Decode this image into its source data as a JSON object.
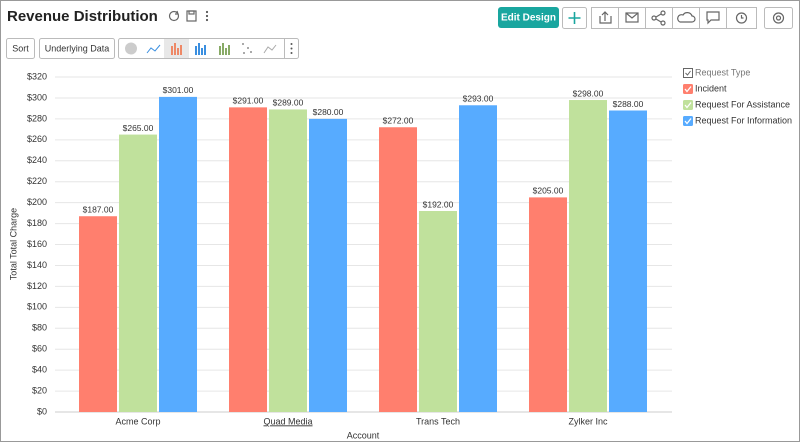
{
  "header": {
    "title": "Revenue Distribution",
    "edit_button": "Edit Design"
  },
  "toolbar": {
    "sort": "Sort",
    "underlying_data": "Underlying Data"
  },
  "chart_data": {
    "type": "bar",
    "x_label": "Account",
    "y_label": "Total Total Charge",
    "categories": [
      "Acme Corp",
      "Quad Media",
      "Trans Tech",
      "Zylker Inc"
    ],
    "legend_title": "Request Type",
    "legend": "right",
    "series": [
      {
        "name": "Incident",
        "color": "#ff7f6e",
        "values": [
          187,
          291,
          272,
          205
        ],
        "value_labels": [
          "$187.00",
          "$291.00",
          "$272.00",
          "$205.00"
        ]
      },
      {
        "name": "Request For Assistance",
        "color": "#c0e19c",
        "values": [
          265,
          289,
          192,
          298
        ],
        "value_labels": [
          "$265.00",
          "$289.00",
          "$192.00",
          "$298.00"
        ]
      },
      {
        "name": "Request For Information",
        "color": "#57abff",
        "values": [
          301,
          280,
          293,
          288
        ],
        "value_labels": [
          "$301.00",
          "$280.00",
          "$293.00",
          "$288.00"
        ]
      }
    ],
    "ylim": [
      0,
      320
    ],
    "yticks": [
      {
        "value": 0,
        "label": "$0"
      },
      {
        "value": 20,
        "label": "$20"
      },
      {
        "value": 40,
        "label": "$40"
      },
      {
        "value": 60,
        "label": "$60"
      },
      {
        "value": 80,
        "label": "$80"
      },
      {
        "value": 100,
        "label": "$100"
      },
      {
        "value": 120,
        "label": "$120"
      },
      {
        "value": 140,
        "label": "$140"
      },
      {
        "value": 160,
        "label": "$160"
      },
      {
        "value": 180,
        "label": "$180"
      },
      {
        "value": 200,
        "label": "$200"
      },
      {
        "value": 220,
        "label": "$220"
      },
      {
        "value": 240,
        "label": "$240"
      },
      {
        "value": 260,
        "label": "$260"
      },
      {
        "value": 280,
        "label": "$280"
      },
      {
        "value": 300,
        "label": "$300"
      },
      {
        "value": 320,
        "label": "$320"
      }
    ],
    "grid": true
  }
}
